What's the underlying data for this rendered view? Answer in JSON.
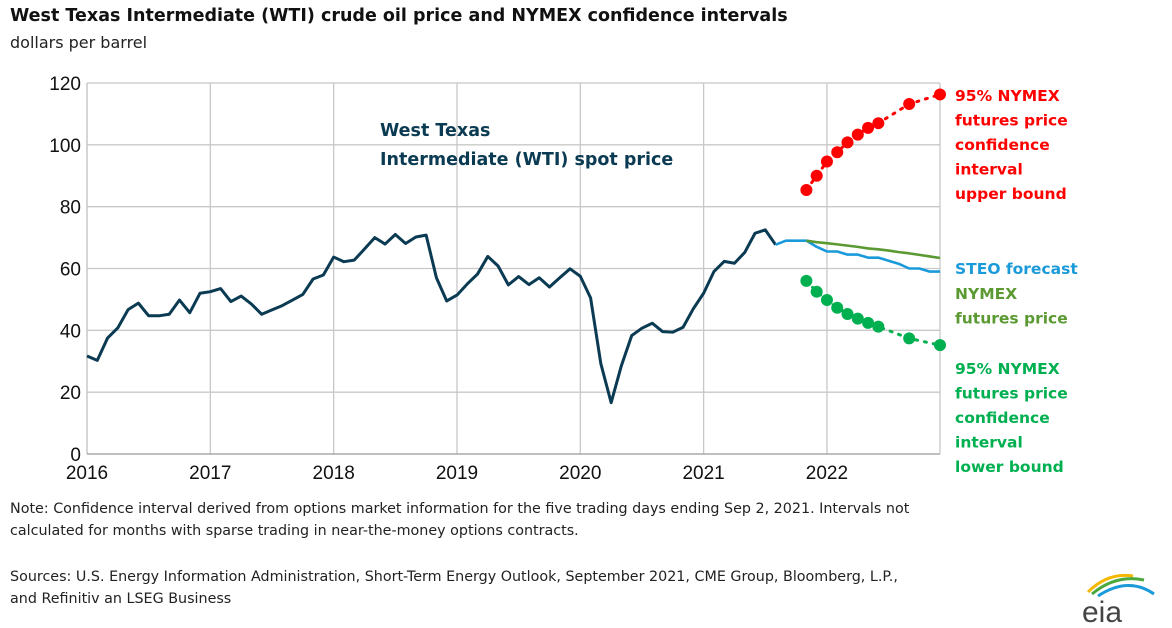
{
  "title": "West Texas Intermediate (WTI) crude oil price and NYMEX confidence intervals",
  "subtitle": "dollars per barrel",
  "note": "Note: Confidence interval derived from options market information for the five trading days ending Sep 2, 2021. Intervals not calculated for months with sparse trading in near-the-money options contracts.",
  "sources": "Sources: U.S. Energy Information Administration, Short-Term Energy Outlook, September 2021, CME Group, Bloomberg, L.P., and Refinitiv an LSEG Business",
  "logo_text": "eia",
  "chart_data": {
    "type": "line",
    "title": "West Texas Intermediate (WTI) crude oil price and NYMEX confidence intervals",
    "ylabel": "dollars per barrel",
    "ylim": [
      0,
      120
    ],
    "yticks": [
      "0",
      "20",
      "40",
      "60",
      "80",
      "100",
      "120"
    ],
    "xlim": [
      "2016-01",
      "2022-12"
    ],
    "xticks": [
      "2016",
      "2017",
      "2018",
      "2019",
      "2020",
      "2021",
      "2022"
    ],
    "grid": true,
    "colors": {
      "spot": "#0b3a53",
      "steo": "#1a9ad9",
      "nymex": "#5b9a32",
      "upper": "#ff0000",
      "lower": "#00b050"
    },
    "series": [
      {
        "name": "West Texas Intermediate (WTI) spot price",
        "label_lines": [
          "West Texas",
          "Intermediate (WTI) spot price"
        ],
        "start": "2016-01",
        "values": [
          31.7,
          30.3,
          37.5,
          40.8,
          46.7,
          48.8,
          44.7,
          44.7,
          45.2,
          49.8,
          45.7,
          52.0,
          52.5,
          53.5,
          49.3,
          51.1,
          48.5,
          45.2,
          46.6,
          48.0,
          49.8,
          51.6,
          56.6,
          57.9,
          63.7,
          62.2,
          62.7,
          66.3,
          70.0,
          67.9,
          71.0,
          68.1,
          70.2,
          70.8,
          57.0,
          49.5,
          51.4,
          55.0,
          58.2,
          63.9,
          60.8,
          54.7,
          57.4,
          54.8,
          57.0,
          54.0,
          57.0,
          59.9,
          57.5,
          50.5,
          29.2,
          16.6,
          28.6,
          38.3,
          40.7,
          42.3,
          39.6,
          39.4,
          41.0,
          47.0,
          52.0,
          59.0,
          62.3,
          61.7,
          65.2,
          71.4,
          72.5,
          67.7
        ]
      },
      {
        "name": "STEO forecast",
        "label_lines": [
          "STEO forecast"
        ],
        "start": "2021-08",
        "values": [
          67.7,
          69.0,
          69.0,
          69.0,
          67.0,
          65.5,
          65.5,
          64.5,
          64.5,
          63.5,
          63.5,
          62.5,
          61.5,
          60.0,
          60.0,
          59.0,
          59.0
        ]
      },
      {
        "name": "NYMEX futures price",
        "label_lines": [
          "NYMEX",
          "futures price"
        ],
        "start": "2021-11",
        "values": [
          69.0,
          68.5,
          68.2,
          67.8,
          67.4,
          67.0,
          66.5,
          66.2,
          65.8,
          65.3,
          64.9,
          64.4,
          63.9,
          63.4
        ]
      },
      {
        "name": "95% NYMEX futures price confidence interval upper bound",
        "label_lines": [
          "95% NYMEX",
          "futures price",
          "confidence",
          "interval",
          "upper bound"
        ],
        "points": [
          [
            "2021-11",
            85.4
          ],
          [
            "2021-12",
            90.0
          ],
          [
            "2022-01",
            94.6
          ],
          [
            "2022-02",
            97.6
          ],
          [
            "2022-03",
            100.8
          ],
          [
            "2022-04",
            103.3
          ],
          [
            "2022-05",
            105.5
          ],
          [
            "2022-06",
            107.0
          ],
          [
            "2022-09",
            113.2
          ],
          [
            "2022-12",
            116.3
          ]
        ]
      },
      {
        "name": "95% NYMEX futures price confidence interval lower bound",
        "label_lines": [
          "95% NYMEX",
          "futures price",
          "confidence",
          "interval",
          "lower bound"
        ],
        "points": [
          [
            "2021-11",
            56.0
          ],
          [
            "2021-12",
            52.5
          ],
          [
            "2022-01",
            49.8
          ],
          [
            "2022-02",
            47.3
          ],
          [
            "2022-03",
            45.3
          ],
          [
            "2022-04",
            43.8
          ],
          [
            "2022-05",
            42.4
          ],
          [
            "2022-06",
            41.2
          ],
          [
            "2022-09",
            37.4
          ],
          [
            "2022-12",
            35.2
          ]
        ]
      }
    ]
  }
}
